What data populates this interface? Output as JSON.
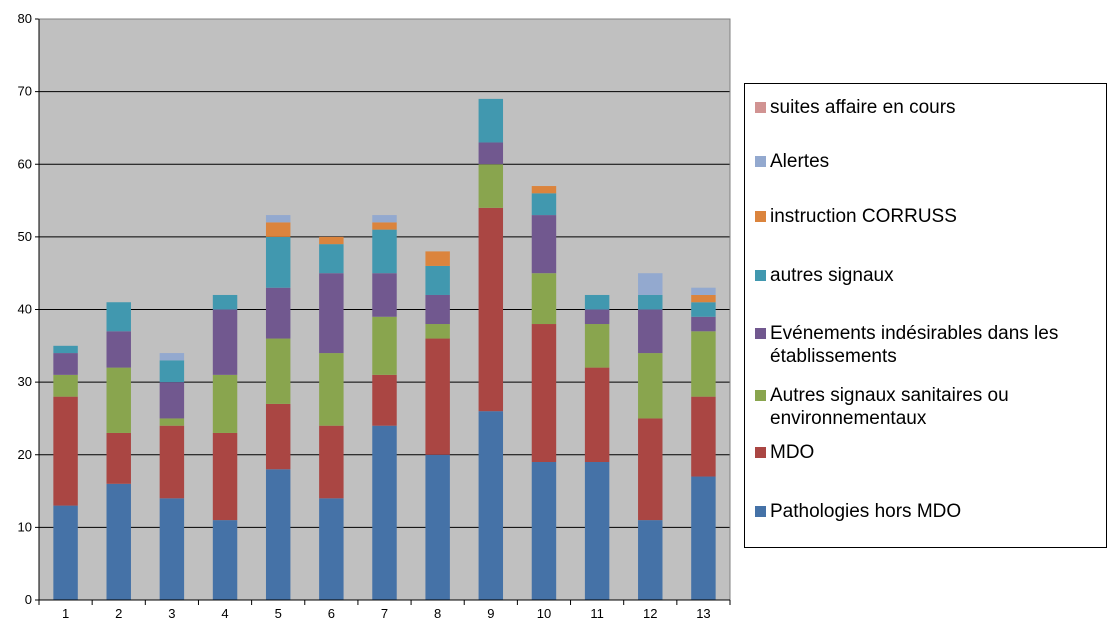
{
  "chart_data": {
    "type": "bar",
    "stacked": true,
    "categories": [
      "1",
      "2",
      "3",
      "4",
      "5",
      "6",
      "7",
      "8",
      "9",
      "10",
      "11",
      "12",
      "13"
    ],
    "ylim": [
      0,
      80
    ],
    "yticks": [
      "0",
      "10",
      "20",
      "30",
      "40",
      "50",
      "60",
      "70",
      "80"
    ],
    "grid": true,
    "legend_position": "right",
    "series": [
      {
        "name": "Pathologies hors MDO",
        "color": "#4572A7",
        "values": [
          13,
          16,
          14,
          11,
          18,
          14,
          24,
          20,
          26,
          19,
          19,
          11,
          17
        ]
      },
      {
        "name": "MDO",
        "color": "#AA4643",
        "values": [
          15,
          7,
          10,
          12,
          9,
          10,
          7,
          16,
          28,
          19,
          13,
          14,
          11
        ]
      },
      {
        "name": "Autres signaux sanitaires ou environnementaux",
        "color": "#89A54E",
        "values": [
          3,
          9,
          1,
          8,
          9,
          10,
          8,
          2,
          6,
          7,
          6,
          9,
          9
        ]
      },
      {
        "name": "Evénements indésirables dans les établissements",
        "color": "#71588F",
        "values": [
          3,
          5,
          5,
          9,
          7,
          11,
          6,
          4,
          3,
          8,
          2,
          6,
          2
        ]
      },
      {
        "name": "autres signaux",
        "color": "#4198AF",
        "values": [
          1,
          4,
          3,
          2,
          7,
          4,
          6,
          4,
          6,
          3,
          2,
          2,
          2
        ]
      },
      {
        "name": "instruction CORRUSS",
        "color": "#DB843D",
        "values": [
          0,
          0,
          0,
          0,
          2,
          1,
          1,
          2,
          0,
          1,
          0,
          0,
          1
        ]
      },
      {
        "name": "Alertes",
        "color": "#93A9CF",
        "values": [
          0,
          0,
          1,
          0,
          1,
          0,
          1,
          0,
          0,
          0,
          0,
          3,
          1
        ]
      },
      {
        "name": "suites affaire en cours",
        "color": "#D19392",
        "values": [
          0,
          0,
          0,
          0,
          0,
          0,
          0,
          0,
          0,
          0,
          0,
          0,
          0
        ]
      }
    ]
  },
  "legend": {
    "items": [
      {
        "lines": [
          "suites affaire en cours"
        ],
        "color": "#D19392"
      },
      {
        "lines": [
          "Alertes"
        ],
        "color": "#93A9CF"
      },
      {
        "lines": [
          "instruction CORRUSS"
        ],
        "color": "#DB843D"
      },
      {
        "lines": [
          "autres signaux"
        ],
        "color": "#4198AF"
      },
      {
        "lines": [
          "Evénements indésirables dans les",
          "établissements"
        ],
        "color": "#71588F"
      },
      {
        "lines": [
          "Autres signaux sanitaires ou",
          "environnementaux"
        ],
        "color": "#89A54E"
      },
      {
        "lines": [
          "MDO"
        ],
        "color": "#AA4643"
      },
      {
        "lines": [
          "Pathologies hors MDO"
        ],
        "color": "#4572A7"
      }
    ]
  }
}
